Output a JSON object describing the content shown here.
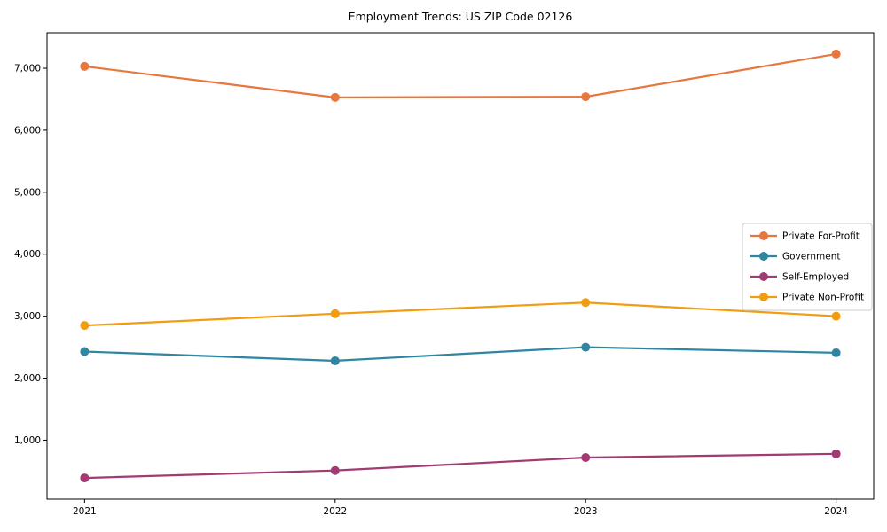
{
  "chart_data": {
    "type": "line",
    "title": "Employment Trends: US ZIP Code 02126",
    "xlabel": "",
    "ylabel": "",
    "x": [
      2021,
      2022,
      2023,
      2024
    ],
    "x_tick_labels": [
      "2021",
      "2022",
      "2023",
      "2024"
    ],
    "y_ticks": [
      {
        "value": 1000,
        "label": "1,000"
      },
      {
        "value": 2000,
        "label": "2,000"
      },
      {
        "value": 3000,
        "label": "3,000"
      },
      {
        "value": 4000,
        "label": "4,000"
      },
      {
        "value": 5000,
        "label": "5,000"
      },
      {
        "value": 6000,
        "label": "6,000"
      },
      {
        "value": 7000,
        "label": "7,000"
      }
    ],
    "series": [
      {
        "name": "Private For-Profit",
        "color": "#E8763F",
        "values": [
          7030,
          6530,
          6540,
          7230
        ]
      },
      {
        "name": "Government",
        "color": "#2E86A0",
        "values": [
          2430,
          2280,
          2500,
          2410
        ]
      },
      {
        "name": "Self-Employed",
        "color": "#A23B72",
        "values": [
          390,
          510,
          720,
          780
        ]
      },
      {
        "name": "Private Non-Profit",
        "color": "#F29C11",
        "values": [
          2850,
          3040,
          3220,
          3000
        ]
      }
    ],
    "xlim": [
      2020.85,
      2024.15
    ],
    "ylim": [
      48,
      7572
    ],
    "grid": false,
    "marker": "circle",
    "legend_position": "center-right",
    "axis_color": "#000000",
    "background_color": "#ffffff"
  }
}
